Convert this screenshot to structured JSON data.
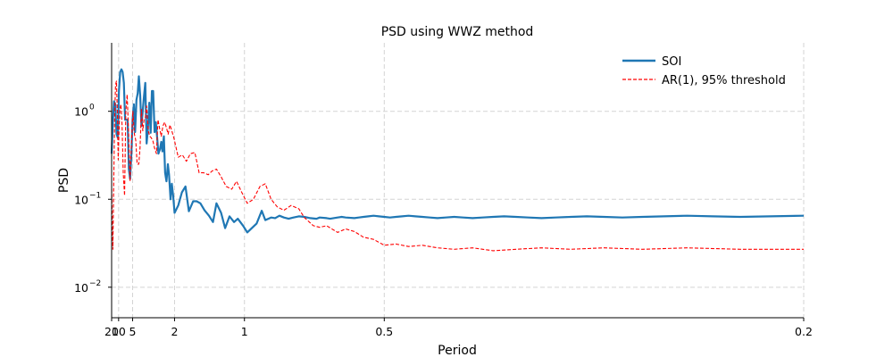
{
  "chart_data": {
    "type": "line",
    "title": "PSD using WWZ method",
    "xlabel": "Period",
    "ylabel": "PSD",
    "x_scale": "reciprocal",
    "y_scale": "log",
    "xlim": [
      20,
      0.2
    ],
    "ylim": [
      0.0045,
      6
    ],
    "x_ticks": [
      {
        "value": 20,
        "label": "20"
      },
      {
        "value": 10,
        "label": "10"
      },
      {
        "value": 5,
        "label": "5"
      },
      {
        "value": 2,
        "label": "2"
      },
      {
        "value": 1,
        "label": "1"
      },
      {
        "value": 0.5,
        "label": "0.5"
      },
      {
        "value": 0.2,
        "label": "0.2"
      }
    ],
    "y_ticks": [
      {
        "value": 1,
        "base": "10",
        "exp": "0"
      },
      {
        "value": 0.1,
        "base": "10",
        "exp": "−1"
      },
      {
        "value": 0.01,
        "base": "10",
        "exp": "−2"
      }
    ],
    "grid": true,
    "legend_position": "top-right",
    "series": [
      {
        "name": "SOI",
        "color": "#1f77b4",
        "style": "solid",
        "x": [
          20,
          17.02,
          14.81,
          13.11,
          11.76,
          10.66,
          9.75,
          8.98,
          8.32,
          7.76,
          7.26,
          6.82,
          6.43,
          6.08,
          5.77,
          5.49,
          5.23,
          5.0,
          4.78,
          4.59,
          4.4,
          4.23,
          4.08,
          3.93,
          3.8,
          3.67,
          3.55,
          3.44,
          3.33,
          3.23,
          3.13,
          3.04,
          2.96,
          2.88,
          2.8,
          2.73,
          2.66,
          2.6,
          2.53,
          2.47,
          2.42,
          2.36,
          2.31,
          2.26,
          2.21,
          2.17,
          2.12,
          2.08,
          2.04,
          2.0,
          1.9,
          1.81,
          1.73,
          1.66,
          1.58,
          1.52,
          1.46,
          1.4,
          1.34,
          1.29,
          1.25,
          1.2,
          1.16,
          1.12,
          1.08,
          1.05,
          1.01,
          0.98,
          0.95,
          0.92,
          0.89,
          0.87,
          0.84,
          0.82,
          0.8,
          0.78,
          0.76,
          0.74,
          0.72,
          0.7,
          0.68,
          0.66,
          0.65,
          0.63,
          0.62,
          0.6,
          0.59,
          0.58,
          0.56,
          0.55,
          0.54,
          0.53,
          0.52,
          0.51,
          0.5,
          0.49,
          0.48,
          0.47,
          0.46,
          0.45,
          0.44,
          0.43,
          0.42,
          0.41,
          0.4,
          0.39,
          0.38,
          0.37,
          0.36,
          0.35,
          0.34,
          0.33,
          0.32,
          0.31,
          0.3,
          0.29,
          0.28,
          0.27,
          0.26,
          0.25,
          0.24,
          0.23,
          0.22,
          0.21,
          0.2
        ],
        "y": [
          0.33,
          0.78,
          1.3,
          1.2,
          0.55,
          0.5,
          1.7,
          2.8,
          3.0,
          2.8,
          2.1,
          0.8,
          0.8,
          0.8,
          0.22,
          0.17,
          0.32,
          0.82,
          1.2,
          0.58,
          1.35,
          1.6,
          2.5,
          1.5,
          0.68,
          1.0,
          1.5,
          2.1,
          0.43,
          0.62,
          1.25,
          0.57,
          1.7,
          1.7,
          0.58,
          0.75,
          0.5,
          0.33,
          0.37,
          0.45,
          0.35,
          0.52,
          0.2,
          0.16,
          0.25,
          0.19,
          0.1,
          0.15,
          0.11,
          0.07,
          0.085,
          0.12,
          0.14,
          0.073,
          0.095,
          0.095,
          0.09,
          0.075,
          0.065,
          0.055,
          0.09,
          0.07,
          0.047,
          0.064,
          0.055,
          0.06,
          0.05,
          0.042,
          0.047,
          0.053,
          0.074,
          0.058,
          0.062,
          0.061,
          0.065,
          0.062,
          0.06,
          0.062,
          0.064,
          0.063,
          0.061,
          0.06,
          0.062,
          0.061,
          0.06,
          0.062,
          0.063,
          0.062,
          0.061,
          0.062,
          0.063,
          0.064,
          0.065,
          0.064,
          0.063,
          0.062,
          0.063,
          0.064,
          0.065,
          0.064,
          0.063,
          0.062,
          0.061,
          0.062,
          0.063,
          0.062,
          0.061,
          0.062,
          0.063,
          0.064,
          0.063,
          0.062,
          0.061,
          0.062,
          0.063,
          0.064,
          0.063,
          0.062,
          0.063,
          0.064,
          0.065,
          0.064,
          0.063,
          0.064,
          0.065
        ]
      },
      {
        "name": "AR(1), 95% threshold",
        "color": "#ff0000",
        "style": "dashed",
        "x": [
          20,
          18.5,
          17.02,
          15.5,
          14.0,
          12.8,
          11.8,
          11.0,
          10.3,
          9.75,
          9.2,
          8.6,
          8.0,
          7.5,
          7.0,
          6.6,
          6.2,
          5.8,
          5.5,
          5.2,
          4.95,
          4.7,
          4.5,
          4.3,
          4.1,
          3.95,
          3.8,
          3.66,
          3.54,
          3.43,
          3.33,
          3.2,
          3.1,
          3.0,
          2.9,
          2.8,
          2.7,
          2.62,
          2.55,
          2.47,
          2.4,
          2.33,
          2.26,
          2.2,
          2.14,
          2.08,
          2.02,
          1.9,
          1.8,
          1.71,
          1.63,
          1.55,
          1.48,
          1.41,
          1.35,
          1.3,
          1.25,
          1.2,
          1.15,
          1.1,
          1.06,
          1.02,
          0.98,
          0.94,
          0.9,
          0.87,
          0.84,
          0.81,
          0.78,
          0.75,
          0.72,
          0.7,
          0.67,
          0.65,
          0.63,
          0.6,
          0.58,
          0.56,
          0.54,
          0.52,
          0.5,
          0.48,
          0.46,
          0.44,
          0.42,
          0.4,
          0.38,
          0.36,
          0.34,
          0.32,
          0.3,
          0.28,
          0.26,
          0.24,
          0.22,
          0.2
        ],
        "y": [
          0.13,
          0.06,
          0.027,
          0.14,
          0.9,
          2.0,
          2.2,
          1.0,
          0.28,
          0.55,
          1.05,
          1.2,
          0.7,
          0.2,
          0.11,
          1.0,
          1.55,
          0.5,
          0.16,
          0.45,
          1.0,
          0.55,
          0.47,
          0.25,
          0.25,
          0.38,
          1.05,
          0.6,
          0.82,
          0.85,
          1.15,
          0.6,
          0.52,
          0.5,
          0.46,
          0.38,
          0.33,
          0.8,
          0.65,
          0.52,
          0.68,
          0.75,
          0.65,
          0.55,
          0.7,
          0.6,
          0.5,
          0.3,
          0.32,
          0.27,
          0.33,
          0.34,
          0.2,
          0.2,
          0.19,
          0.21,
          0.22,
          0.18,
          0.14,
          0.13,
          0.16,
          0.12,
          0.09,
          0.1,
          0.14,
          0.15,
          0.1,
          0.082,
          0.075,
          0.085,
          0.078,
          0.062,
          0.05,
          0.048,
          0.05,
          0.042,
          0.046,
          0.043,
          0.037,
          0.035,
          0.03,
          0.031,
          0.029,
          0.03,
          0.028,
          0.027,
          0.028,
          0.026,
          0.027,
          0.028,
          0.027,
          0.028,
          0.027,
          0.028,
          0.027,
          0.027
        ]
      }
    ]
  }
}
